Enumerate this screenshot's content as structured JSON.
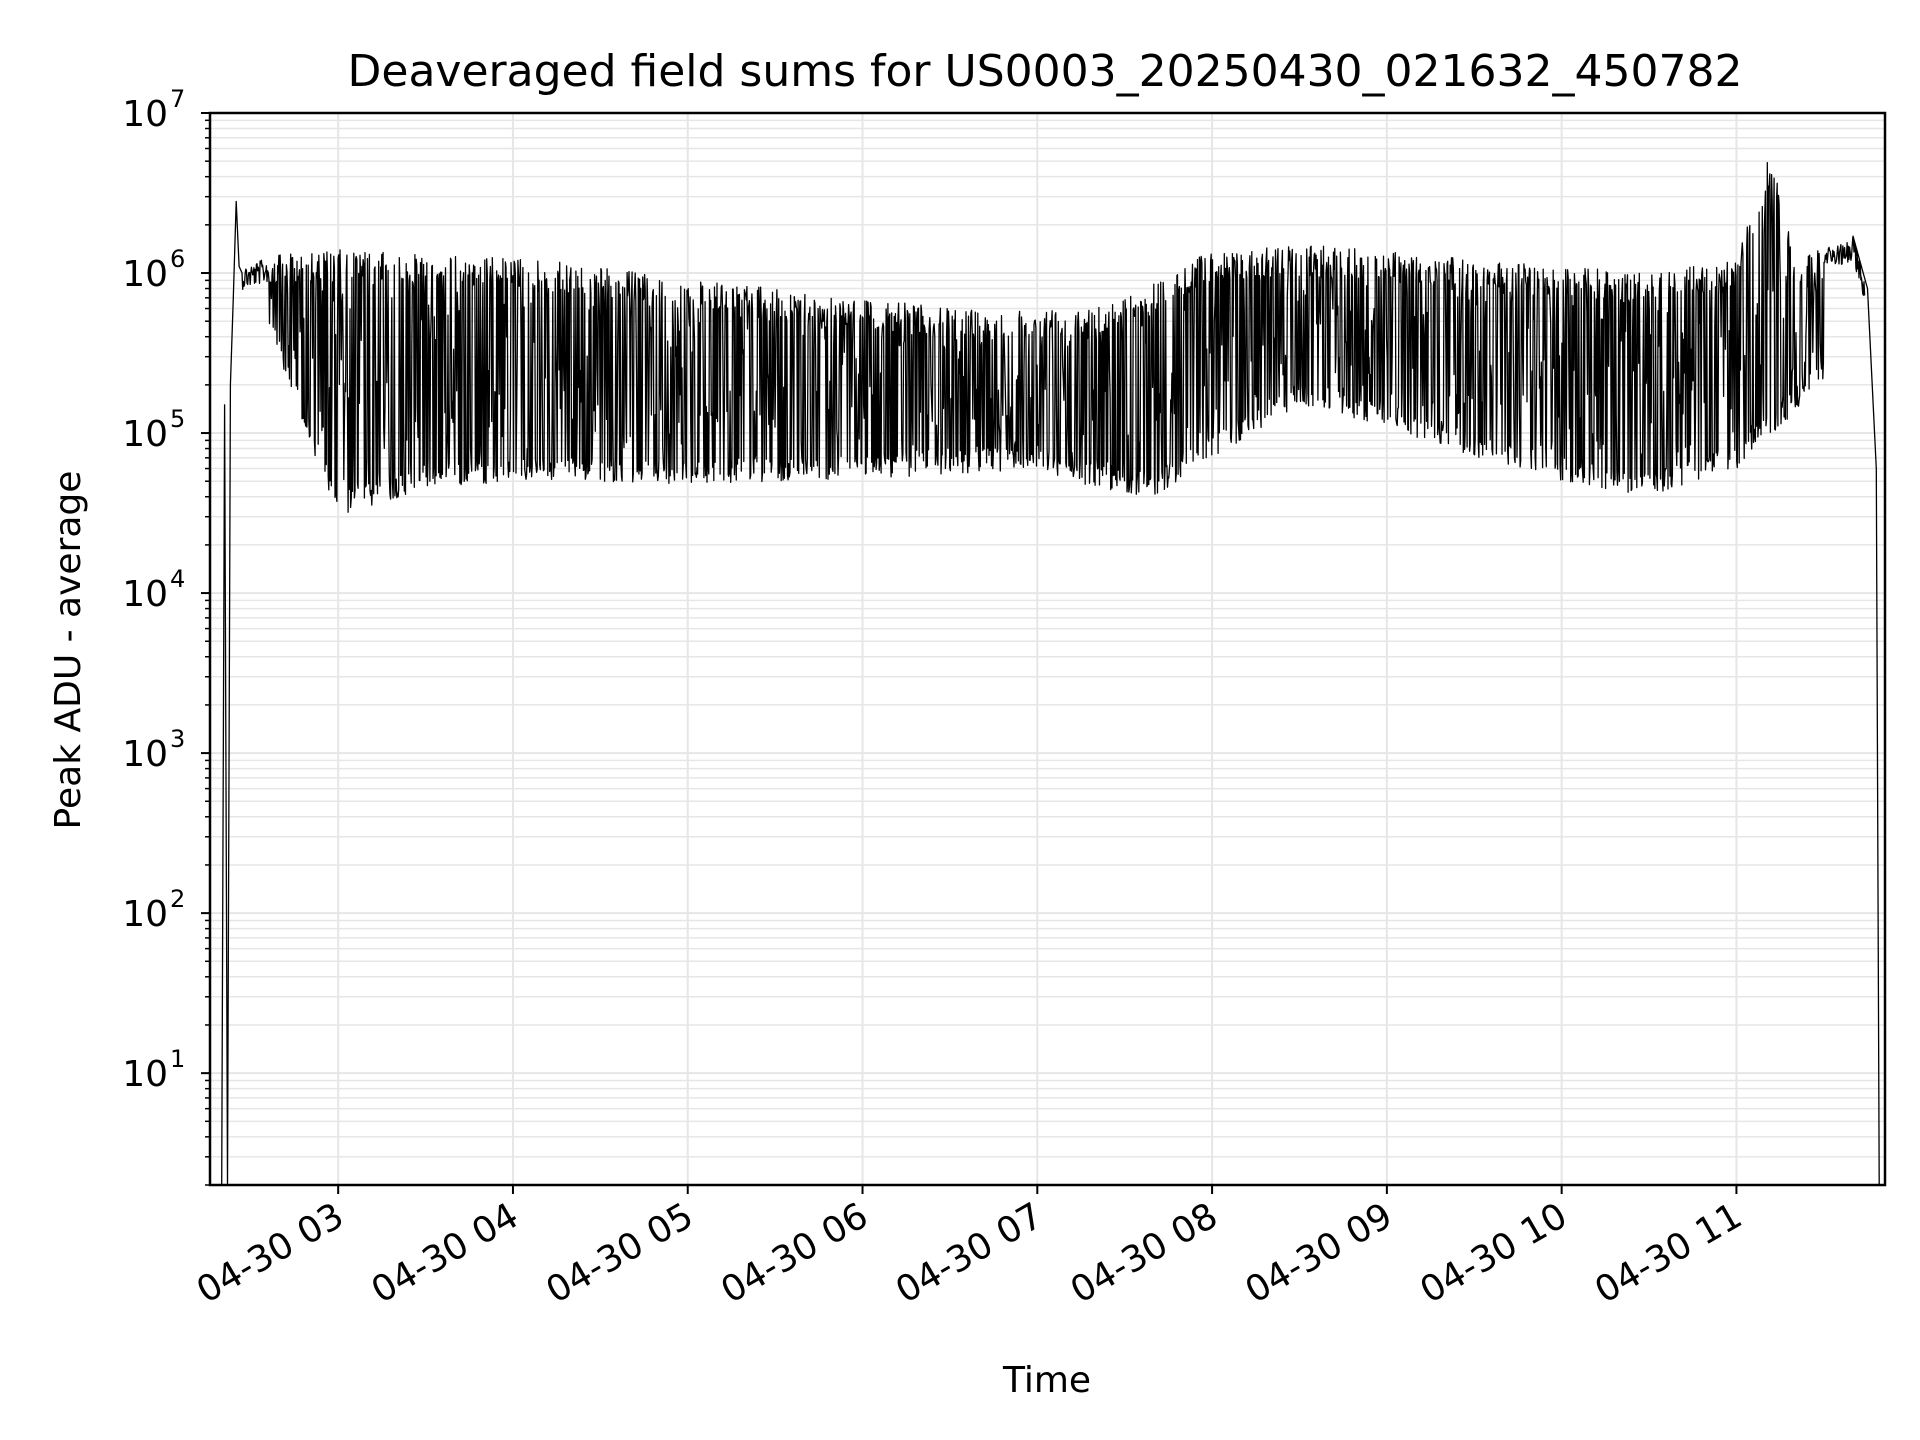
{
  "chart_data": {
    "type": "line",
    "title": "Deaveraged field sums for US0003_20250430_021632_450782",
    "xlabel": "Time",
    "ylabel": "Peak ADU - average",
    "yscale": "log",
    "ylim": [
      2,
      10000000
    ],
    "xlim": [
      "2025-04-30 02:16",
      "2025-04-30 11:51"
    ],
    "grid": "on",
    "line_color": "#000000",
    "grid_color": "#e6e6e6",
    "x_ticks": [
      {
        "value": "2025-04-30 03:00",
        "label": "04-30 03"
      },
      {
        "value": "2025-04-30 04:00",
        "label": "04-30 04"
      },
      {
        "value": "2025-04-30 05:00",
        "label": "04-30 05"
      },
      {
        "value": "2025-04-30 06:00",
        "label": "04-30 06"
      },
      {
        "value": "2025-04-30 07:00",
        "label": "04-30 07"
      },
      {
        "value": "2025-04-30 08:00",
        "label": "04-30 08"
      },
      {
        "value": "2025-04-30 09:00",
        "label": "04-30 09"
      },
      {
        "value": "2025-04-30 10:00",
        "label": "04-30 10"
      },
      {
        "value": "2025-04-30 11:00",
        "label": "04-30 11"
      }
    ],
    "y_ticks": [
      {
        "value": 10,
        "base": "10",
        "exp": "1"
      },
      {
        "value": 100,
        "base": "10",
        "exp": "2"
      },
      {
        "value": 1000,
        "base": "10",
        "exp": "3"
      },
      {
        "value": 10000,
        "base": "10",
        "exp": "4"
      },
      {
        "value": 100000,
        "base": "10",
        "exp": "5"
      },
      {
        "value": 1000000,
        "base": "10",
        "exp": "6"
      },
      {
        "value": 10000000,
        "base": "10",
        "exp": "7"
      }
    ],
    "series": [
      {
        "upper_envelope": [
          [
            "2025-04-30 02:20",
            2
          ],
          [
            "2025-04-30 02:21",
            150000
          ],
          [
            "2025-04-30 02:22",
            2
          ],
          [
            "2025-04-30 02:23",
            200000
          ],
          [
            "2025-04-30 02:24",
            700000
          ],
          [
            "2025-04-30 02:25",
            2800000
          ],
          [
            "2025-04-30 02:26",
            1100000
          ],
          [
            "2025-04-30 02:30",
            1150000
          ],
          [
            "2025-04-30 02:40",
            1300000
          ],
          [
            "2025-04-30 03:00",
            1400000
          ],
          [
            "2025-04-30 03:30",
            1300000
          ],
          [
            "2025-04-30 04:00",
            1250000
          ],
          [
            "2025-04-30 04:30",
            1100000
          ],
          [
            "2025-04-30 05:00",
            900000
          ],
          [
            "2025-04-30 05:30",
            800000
          ],
          [
            "2025-04-30 06:00",
            700000
          ],
          [
            "2025-04-30 06:30",
            600000
          ],
          [
            "2025-04-30 07:00",
            600000
          ],
          [
            "2025-04-30 07:30",
            700000
          ],
          [
            "2025-04-30 08:00",
            1400000
          ],
          [
            "2025-04-30 08:30",
            1500000
          ],
          [
            "2025-04-30 09:00",
            1400000
          ],
          [
            "2025-04-30 09:30",
            1200000
          ],
          [
            "2025-04-30 10:00",
            1100000
          ],
          [
            "2025-04-30 10:30",
            1000000
          ],
          [
            "2025-04-30 11:00",
            1200000
          ],
          [
            "2025-04-30 11:12",
            6000000
          ],
          [
            "2025-04-30 11:20",
            1200000
          ],
          [
            "2025-04-30 11:40",
            1700000
          ],
          [
            "2025-04-30 11:45",
            800000
          ],
          [
            "2025-04-30 11:48",
            60000
          ],
          [
            "2025-04-30 11:49",
            2
          ]
        ],
        "lower_envelope": [
          [
            "2025-04-30 02:35",
            500000
          ],
          [
            "2025-04-30 02:45",
            150000
          ],
          [
            "2025-04-30 03:00",
            30000
          ],
          [
            "2025-04-30 03:30",
            45000
          ],
          [
            "2025-04-30 04:00",
            50000
          ],
          [
            "2025-04-30 04:30",
            50000
          ],
          [
            "2025-04-30 05:00",
            48000
          ],
          [
            "2025-04-30 05:30",
            50000
          ],
          [
            "2025-04-30 06:00",
            52000
          ],
          [
            "2025-04-30 06:30",
            55000
          ],
          [
            "2025-04-30 07:00",
            60000
          ],
          [
            "2025-04-30 07:20",
            45000
          ],
          [
            "2025-04-30 07:40",
            40000
          ],
          [
            "2025-04-30 08:00",
            70000
          ],
          [
            "2025-04-30 08:30",
            150000
          ],
          [
            "2025-04-30 09:00",
            110000
          ],
          [
            "2025-04-30 09:30",
            70000
          ],
          [
            "2025-04-30 10:00",
            50000
          ],
          [
            "2025-04-30 10:30",
            40000
          ],
          [
            "2025-04-30 11:00",
            60000
          ],
          [
            "2025-04-30 11:30",
            200000
          ]
        ]
      }
    ]
  }
}
